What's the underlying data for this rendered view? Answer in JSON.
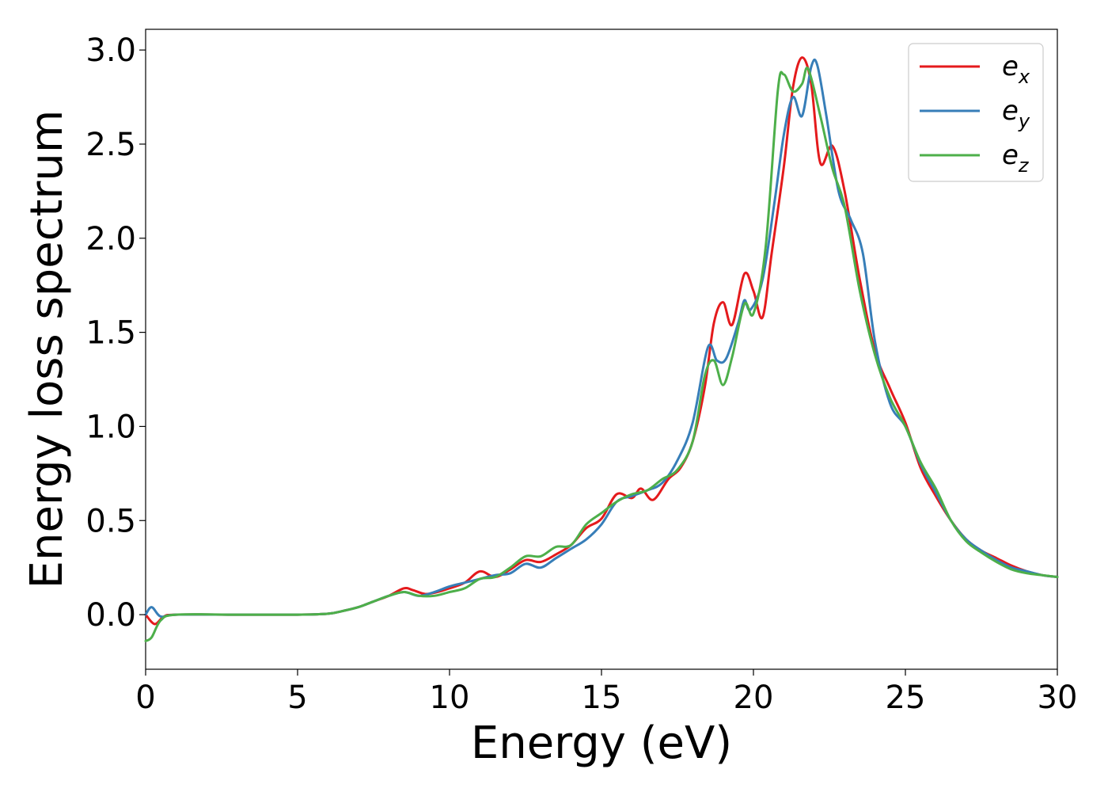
{
  "chart_data": {
    "type": "line",
    "title": "",
    "xlabel": "Energy (eV)",
    "ylabel": "Energy loss spectrum",
    "xlim": [
      0,
      30
    ],
    "ylim": [
      -0.29,
      3.11
    ],
    "xticks": [
      0,
      5,
      10,
      15,
      20,
      25,
      30
    ],
    "xtick_labels": [
      "0",
      "5",
      "10",
      "15",
      "20",
      "25",
      "30"
    ],
    "yticks": [
      0.0,
      0.5,
      1.0,
      1.5,
      2.0,
      2.5,
      3.0
    ],
    "ytick_labels": [
      "0.0",
      "0.5",
      "1.0",
      "1.5",
      "2.0",
      "2.5",
      "3.0"
    ],
    "grid": false,
    "legend": {
      "position": "top-right"
    },
    "series": [
      {
        "name": "e",
        "subscript": "x",
        "color": "#e41a1c",
        "points": [
          [
            0,
            0.0
          ],
          [
            0.3,
            -0.05
          ],
          [
            0.6,
            -0.01
          ],
          [
            1,
            0.0
          ],
          [
            3,
            0.0
          ],
          [
            5,
            0.0
          ],
          [
            6,
            0.005
          ],
          [
            6.5,
            0.02
          ],
          [
            7,
            0.04
          ],
          [
            7.5,
            0.07
          ],
          [
            8,
            0.1
          ],
          [
            8.5,
            0.14
          ],
          [
            8.8,
            0.13
          ],
          [
            9.2,
            0.11
          ],
          [
            9.6,
            0.12
          ],
          [
            10,
            0.14
          ],
          [
            10.5,
            0.17
          ],
          [
            11,
            0.23
          ],
          [
            11.5,
            0.2
          ],
          [
            12,
            0.24
          ],
          [
            12.5,
            0.29
          ],
          [
            13,
            0.28
          ],
          [
            13.5,
            0.32
          ],
          [
            14,
            0.37
          ],
          [
            14.5,
            0.46
          ],
          [
            15,
            0.51
          ],
          [
            15.5,
            0.64
          ],
          [
            16,
            0.62
          ],
          [
            16.3,
            0.67
          ],
          [
            16.7,
            0.61
          ],
          [
            17.2,
            0.72
          ],
          [
            17.6,
            0.78
          ],
          [
            18,
            0.92
          ],
          [
            18.4,
            1.21
          ],
          [
            18.7,
            1.55
          ],
          [
            19,
            1.66
          ],
          [
            19.3,
            1.54
          ],
          [
            19.7,
            1.81
          ],
          [
            20,
            1.72
          ],
          [
            20.3,
            1.58
          ],
          [
            20.6,
            1.92
          ],
          [
            21,
            2.38
          ],
          [
            21.3,
            2.8
          ],
          [
            21.6,
            2.96
          ],
          [
            21.9,
            2.82
          ],
          [
            22.2,
            2.4
          ],
          [
            22.6,
            2.49
          ],
          [
            23,
            2.25
          ],
          [
            23.5,
            1.78
          ],
          [
            24,
            1.4
          ],
          [
            24.5,
            1.2
          ],
          [
            25,
            1.02
          ],
          [
            25.5,
            0.78
          ],
          [
            26,
            0.63
          ],
          [
            26.5,
            0.5
          ],
          [
            27,
            0.4
          ],
          [
            27.5,
            0.34
          ],
          [
            28,
            0.3
          ],
          [
            28.5,
            0.26
          ],
          [
            29,
            0.23
          ],
          [
            29.5,
            0.21
          ],
          [
            30,
            0.2
          ]
        ]
      },
      {
        "name": "e",
        "subscript": "y",
        "color": "#377eb8",
        "points": [
          [
            0,
            0.0
          ],
          [
            0.2,
            0.04
          ],
          [
            0.5,
            -0.01
          ],
          [
            1,
            0.0
          ],
          [
            3,
            0.0
          ],
          [
            5,
            0.0
          ],
          [
            6,
            0.005
          ],
          [
            6.5,
            0.02
          ],
          [
            7,
            0.04
          ],
          [
            7.5,
            0.07
          ],
          [
            8,
            0.1
          ],
          [
            8.5,
            0.12
          ],
          [
            9,
            0.1
          ],
          [
            9.5,
            0.12
          ],
          [
            10,
            0.15
          ],
          [
            10.5,
            0.17
          ],
          [
            11,
            0.19
          ],
          [
            11.5,
            0.21
          ],
          [
            12,
            0.22
          ],
          [
            12.5,
            0.27
          ],
          [
            13,
            0.25
          ],
          [
            13.5,
            0.3
          ],
          [
            14,
            0.35
          ],
          [
            14.5,
            0.4
          ],
          [
            15,
            0.48
          ],
          [
            15.5,
            0.6
          ],
          [
            16,
            0.63
          ],
          [
            16.5,
            0.66
          ],
          [
            17,
            0.7
          ],
          [
            17.5,
            0.82
          ],
          [
            18,
            1.02
          ],
          [
            18.5,
            1.42
          ],
          [
            18.8,
            1.35
          ],
          [
            19.1,
            1.36
          ],
          [
            19.5,
            1.55
          ],
          [
            19.7,
            1.67
          ],
          [
            19.9,
            1.62
          ],
          [
            20.3,
            1.78
          ],
          [
            20.7,
            2.2
          ],
          [
            21,
            2.55
          ],
          [
            21.3,
            2.75
          ],
          [
            21.6,
            2.65
          ],
          [
            21.9,
            2.91
          ],
          [
            22.1,
            2.92
          ],
          [
            22.4,
            2.65
          ],
          [
            22.8,
            2.25
          ],
          [
            23.2,
            2.1
          ],
          [
            23.6,
            1.92
          ],
          [
            24,
            1.45
          ],
          [
            24.5,
            1.12
          ],
          [
            25,
            1.0
          ],
          [
            25.5,
            0.8
          ],
          [
            26,
            0.65
          ],
          [
            26.5,
            0.5
          ],
          [
            27,
            0.4
          ],
          [
            27.5,
            0.34
          ],
          [
            28,
            0.29
          ],
          [
            28.5,
            0.25
          ],
          [
            29,
            0.23
          ],
          [
            29.5,
            0.21
          ],
          [
            30,
            0.2
          ]
        ]
      },
      {
        "name": "e",
        "subscript": "z",
        "color": "#4daf4a",
        "points": [
          [
            0,
            -0.14
          ],
          [
            0.2,
            -0.12
          ],
          [
            0.5,
            -0.03
          ],
          [
            1,
            0.0
          ],
          [
            3,
            0.0
          ],
          [
            5,
            0.0
          ],
          [
            6,
            0.005
          ],
          [
            6.5,
            0.02
          ],
          [
            7,
            0.04
          ],
          [
            7.5,
            0.07
          ],
          [
            8,
            0.1
          ],
          [
            8.5,
            0.12
          ],
          [
            9,
            0.1
          ],
          [
            9.5,
            0.1
          ],
          [
            10,
            0.12
          ],
          [
            10.5,
            0.14
          ],
          [
            11,
            0.19
          ],
          [
            11.5,
            0.2
          ],
          [
            12,
            0.25
          ],
          [
            12.5,
            0.31
          ],
          [
            13,
            0.31
          ],
          [
            13.5,
            0.36
          ],
          [
            14,
            0.37
          ],
          [
            14.5,
            0.48
          ],
          [
            15,
            0.54
          ],
          [
            15.5,
            0.6
          ],
          [
            16,
            0.64
          ],
          [
            16.5,
            0.66
          ],
          [
            17,
            0.72
          ],
          [
            17.5,
            0.77
          ],
          [
            18,
            0.92
          ],
          [
            18.4,
            1.27
          ],
          [
            18.7,
            1.35
          ],
          [
            19,
            1.22
          ],
          [
            19.3,
            1.37
          ],
          [
            19.7,
            1.65
          ],
          [
            20,
            1.6
          ],
          [
            20.4,
            1.95
          ],
          [
            20.8,
            2.78
          ],
          [
            21,
            2.87
          ],
          [
            21.3,
            2.78
          ],
          [
            21.6,
            2.82
          ],
          [
            21.8,
            2.9
          ],
          [
            22.2,
            2.65
          ],
          [
            22.6,
            2.37
          ],
          [
            23,
            2.17
          ],
          [
            23.5,
            1.72
          ],
          [
            24,
            1.38
          ],
          [
            24.5,
            1.15
          ],
          [
            25,
            1.0
          ],
          [
            25.5,
            0.81
          ],
          [
            26,
            0.67
          ],
          [
            26.5,
            0.5
          ],
          [
            27,
            0.39
          ],
          [
            27.5,
            0.33
          ],
          [
            28,
            0.28
          ],
          [
            28.5,
            0.24
          ],
          [
            29,
            0.22
          ],
          [
            29.5,
            0.21
          ],
          [
            30,
            0.2
          ]
        ]
      }
    ]
  }
}
